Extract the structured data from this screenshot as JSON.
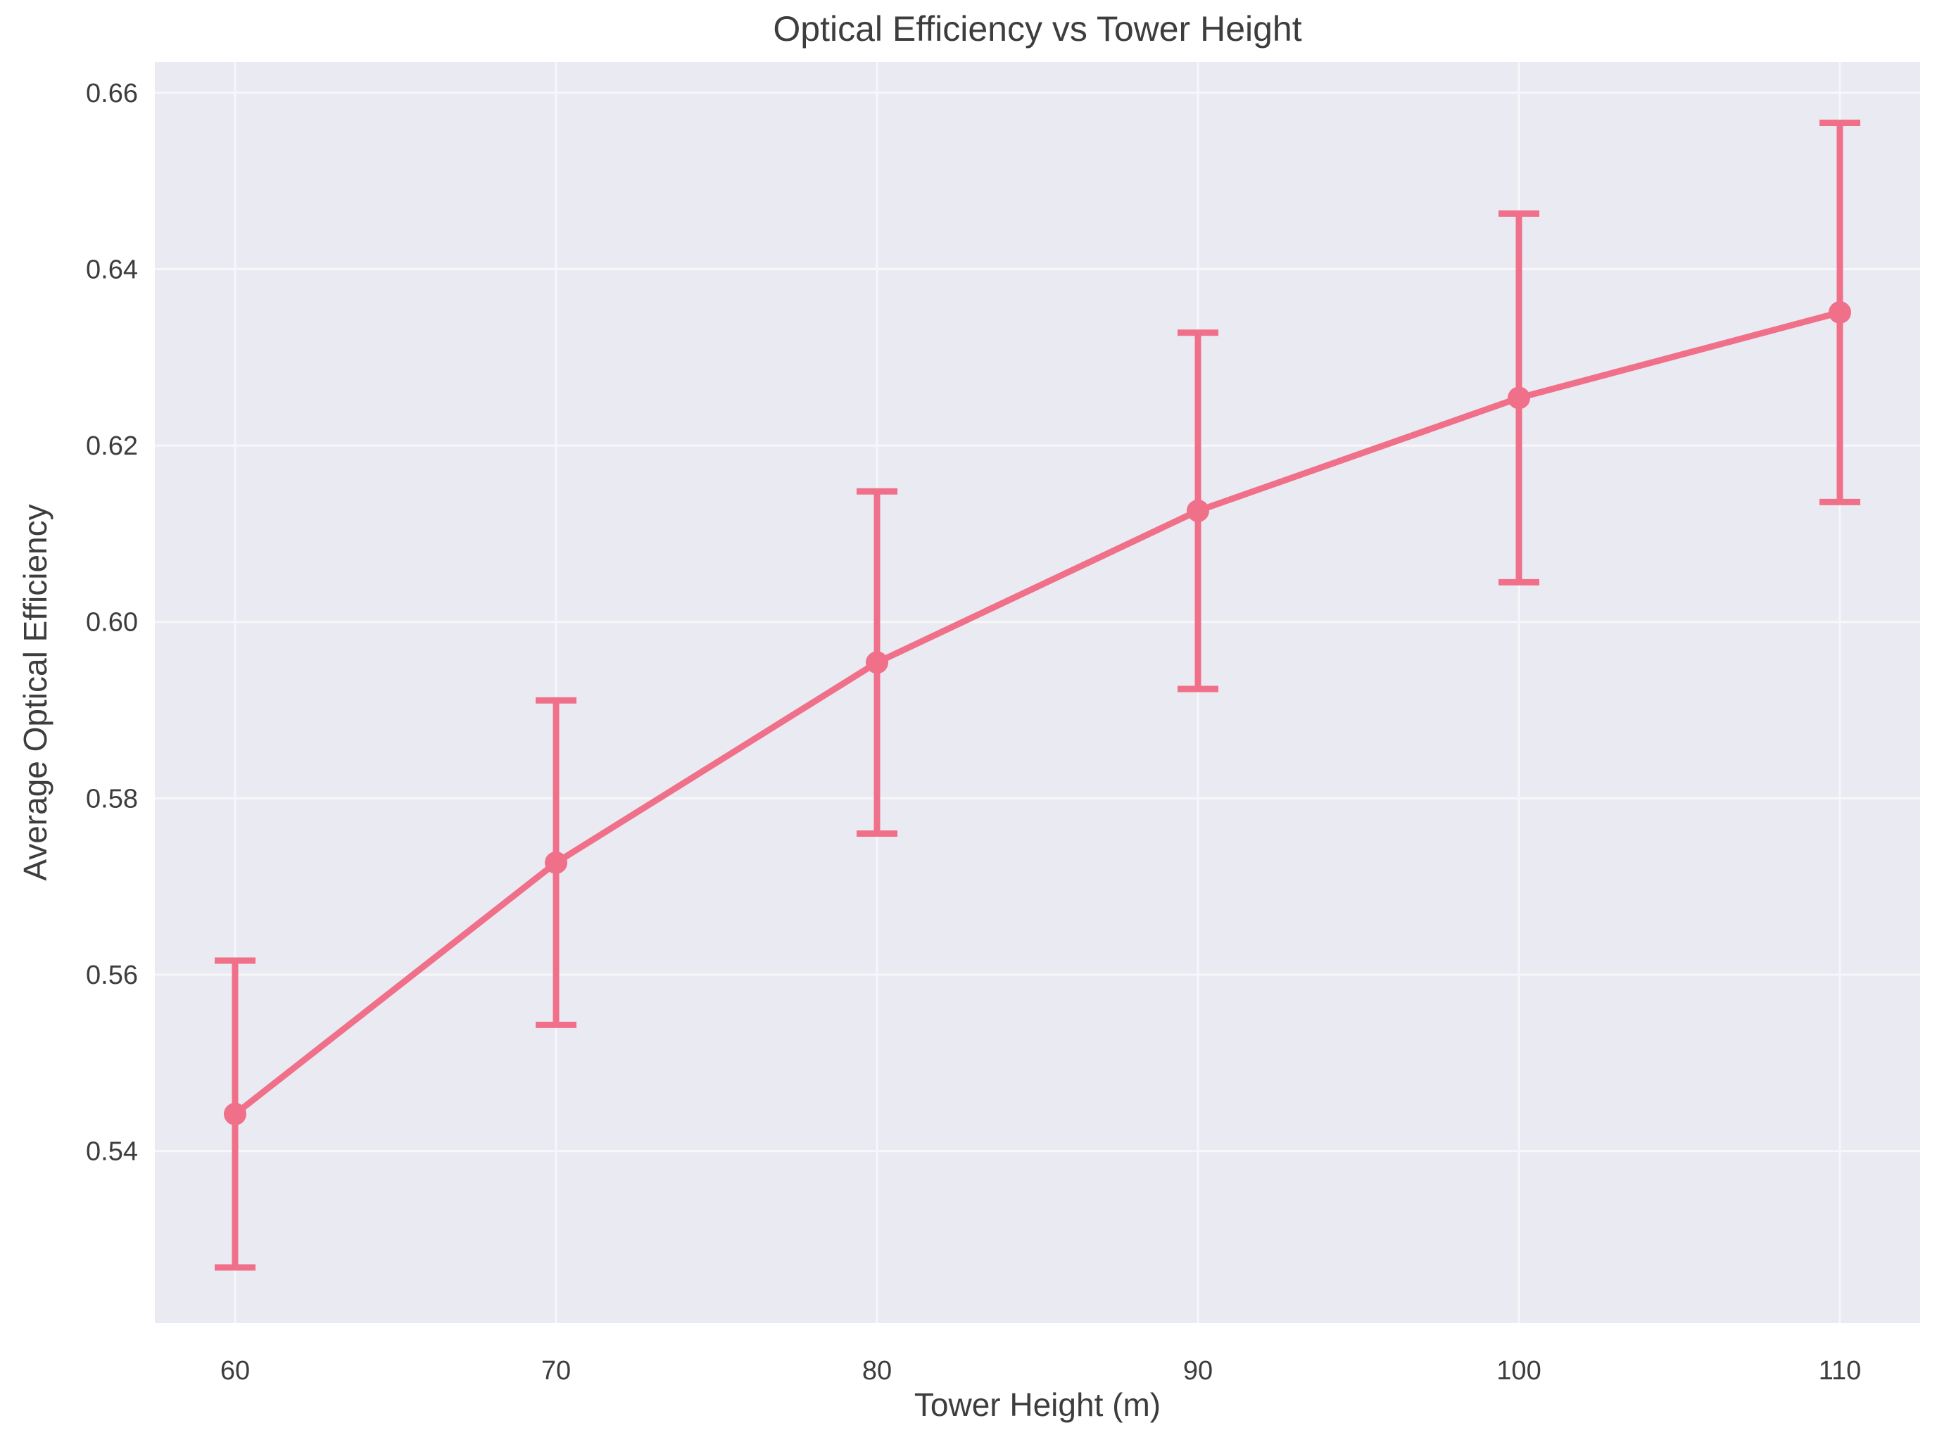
{
  "chart_data": {
    "type": "line",
    "title": "Optical Efficiency vs Tower Height",
    "xlabel": "Tower Height (m)",
    "ylabel": "Average Optical Efficiency",
    "x": [
      60,
      70,
      80,
      90,
      100,
      110
    ],
    "xticks": [
      "60",
      "70",
      "80",
      "90",
      "100",
      "110"
    ],
    "yticks": [
      "0.54",
      "0.56",
      "0.58",
      "0.60",
      "0.62",
      "0.64",
      "0.66"
    ],
    "xlim": [
      57.5,
      112.5
    ],
    "ylim": [
      0.5205,
      0.6635
    ],
    "grid": true,
    "series": [
      {
        "values": [
          0.5442,
          0.5727,
          0.5954,
          0.6126,
          0.6254,
          0.6351
        ],
        "error": [
          0.0174,
          0.0184,
          0.0194,
          0.0202,
          0.0209,
          0.0215
        ],
        "color": "#f0708a"
      }
    ],
    "background_color": "#eaeaf2"
  }
}
